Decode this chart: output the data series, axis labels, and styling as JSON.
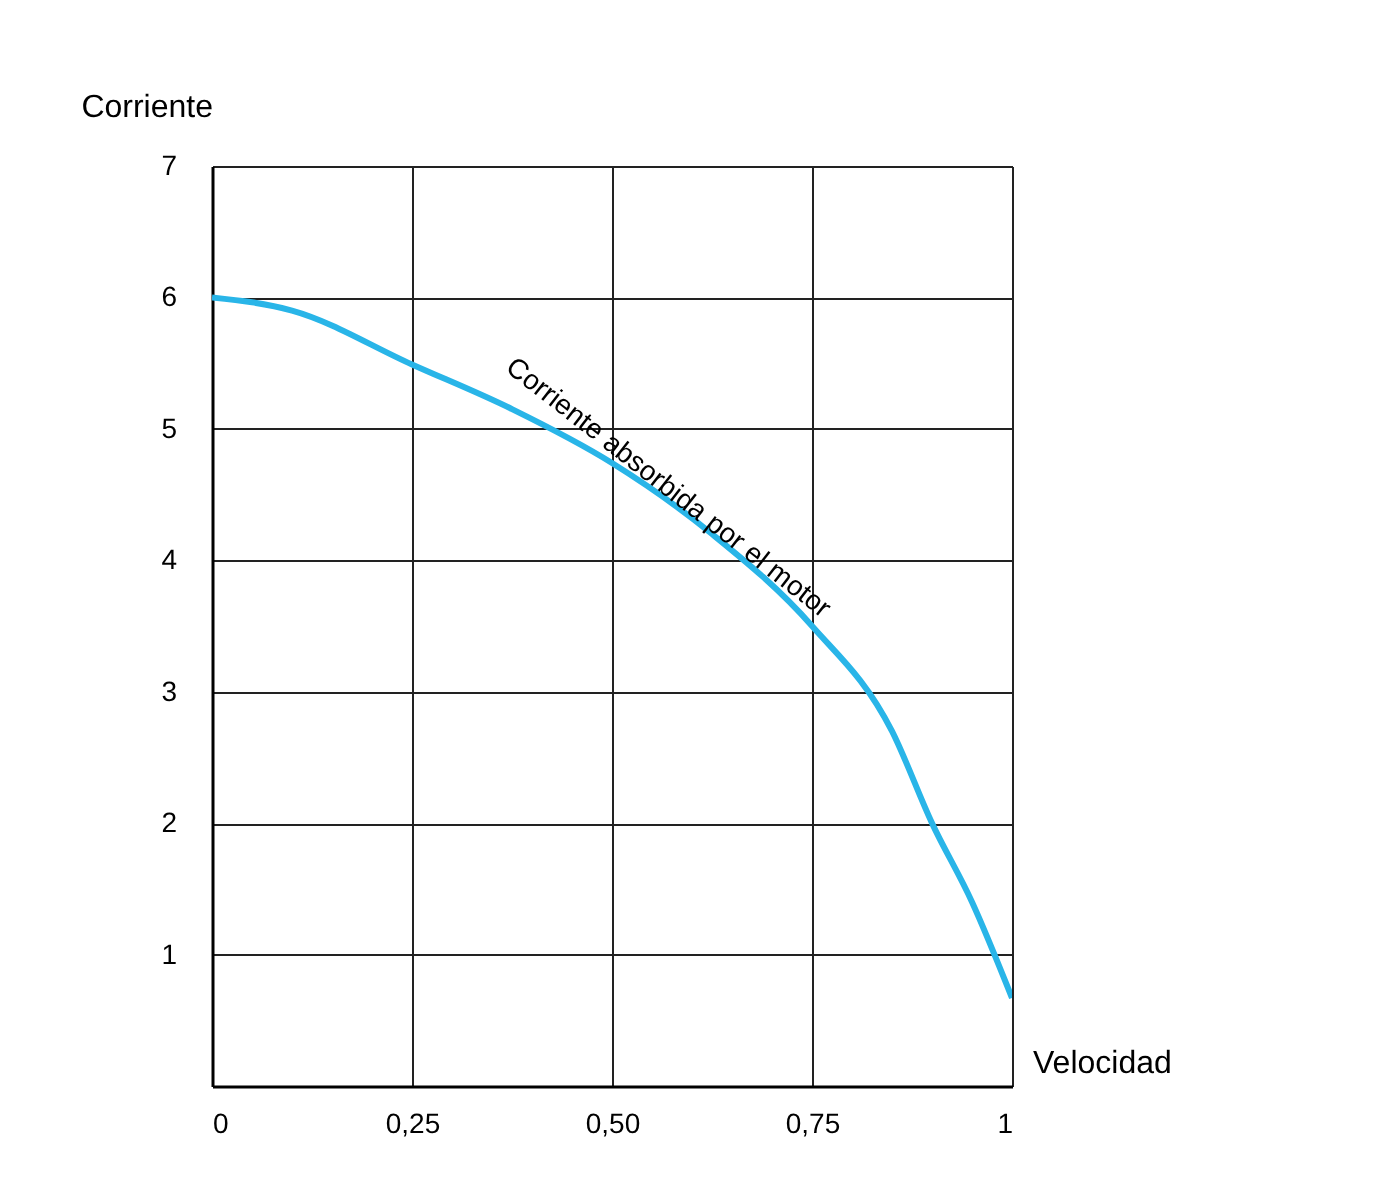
{
  "chart_data": {
    "type": "line",
    "xlabel": "Velocidad",
    "ylabel": "Corriente",
    "x": [
      0,
      0.1,
      0.25,
      0.375,
      0.5,
      0.625,
      0.75,
      0.85,
      0.9,
      0.95,
      1
    ],
    "series": [
      {
        "color": "#29b5e8",
        "values": [
          6,
          5.9,
          5.49,
          5.15,
          4.74,
          4.2,
          3.5,
          2.7,
          2.0,
          1.4,
          0.67
        ]
      }
    ],
    "xlim": [
      0,
      1
    ],
    "ylim": [
      0,
      7
    ],
    "xticks": [
      0,
      {
        "value": 0.25,
        "label": "0,25"
      },
      {
        "value": 0.5,
        "label": "0,50"
      },
      {
        "value": 0.75,
        "label": "0,75"
      },
      1
    ],
    "yticks": [
      {
        "value": 0,
        "label": null
      },
      1,
      2,
      3,
      4,
      5,
      6,
      7
    ],
    "grid": true,
    "marker": "none",
    "line_style": "solid",
    "annotations": [
      {
        "text": "Corriente absorbida por el motor",
        "x": 0.57,
        "y": 4.55
      }
    ]
  }
}
